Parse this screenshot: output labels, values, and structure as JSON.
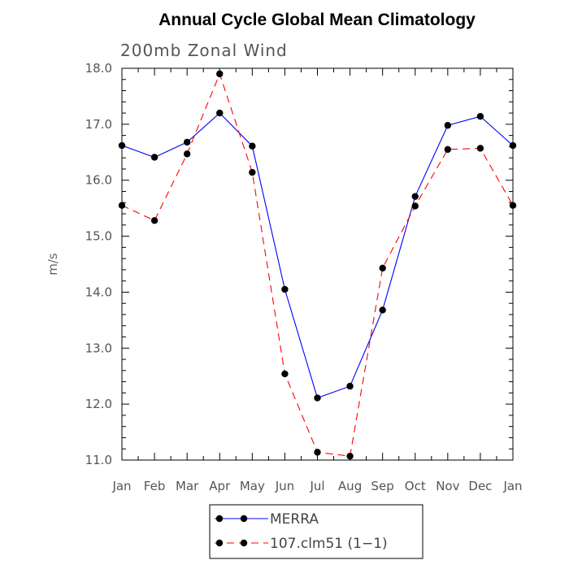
{
  "chart_data": {
    "type": "line",
    "title": "Annual Cycle Global Mean Climatology",
    "subtitle": "200mb Zonal Wind",
    "ylabel": "m/s",
    "xlabel": "",
    "categories": [
      "Jan",
      "Feb",
      "Mar",
      "Apr",
      "May",
      "Jun",
      "Jul",
      "Aug",
      "Sep",
      "Oct",
      "Nov",
      "Dec",
      "Jan"
    ],
    "ylim": [
      11.0,
      18.0
    ],
    "yticks": [
      "11.0",
      "12.0",
      "13.0",
      "14.0",
      "15.0",
      "16.0",
      "17.0",
      "18.0"
    ],
    "grid": false,
    "legend_position": "bottom",
    "series": [
      {
        "name": "MERRA",
        "color": "#0000ff",
        "dash": "solid",
        "values": [
          16.62,
          16.41,
          16.68,
          17.2,
          16.61,
          14.05,
          12.11,
          12.32,
          13.68,
          15.71,
          16.98,
          17.14,
          16.62
        ]
      },
      {
        "name": "107.clm51 (1−1)",
        "color": "#ff0000",
        "dash": "dashed",
        "values": [
          15.55,
          15.28,
          16.47,
          17.9,
          16.14,
          12.54,
          11.14,
          11.07,
          14.43,
          15.54,
          16.55,
          16.57,
          15.55
        ]
      }
    ]
  }
}
